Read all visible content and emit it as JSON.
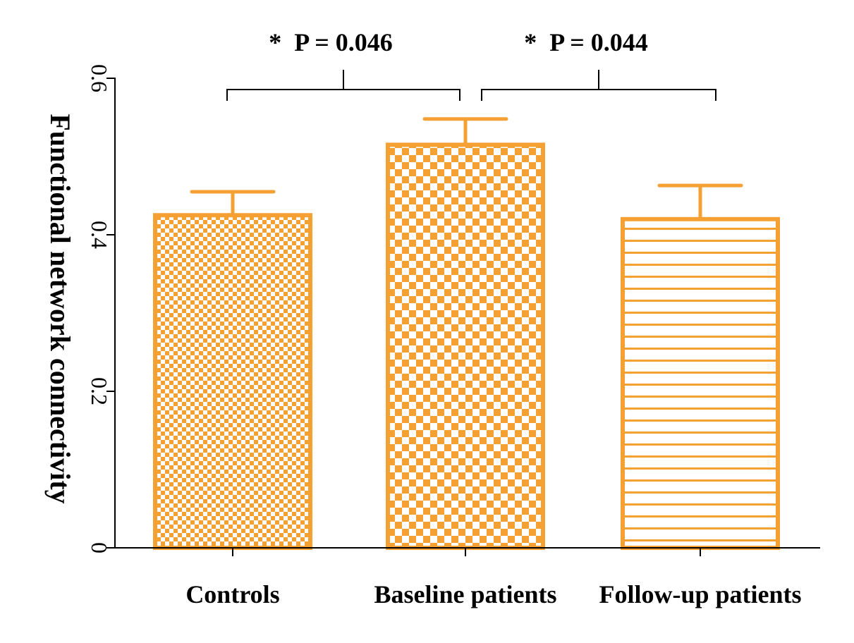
{
  "chart_data": {
    "type": "bar",
    "title": "",
    "xlabel": "",
    "ylabel": "Functional network connectivity",
    "ylim": [
      0,
      0.6
    ],
    "yticks": [
      {
        "value": 0,
        "label": "0"
      },
      {
        "value": 0.2,
        "label": "0.2"
      },
      {
        "value": 0.4,
        "label": "0.4"
      },
      {
        "value": 0.6,
        "label": "0.6"
      }
    ],
    "categories": [
      "Controls",
      "Baseline patients",
      "Follow-up patients"
    ],
    "values": [
      0.425,
      0.515,
      0.42
    ],
    "error_upper": [
      0.03,
      0.033,
      0.043
    ],
    "patterns": [
      "fine-checker",
      "coarse-checker",
      "horizontal-lines"
    ],
    "color": "#F5A033",
    "grid": false,
    "significance": [
      {
        "from": 0,
        "to": 1,
        "label": "*  P = 0.046"
      },
      {
        "from": 1,
        "to": 2,
        "label": "*  P = 0.044"
      }
    ]
  }
}
